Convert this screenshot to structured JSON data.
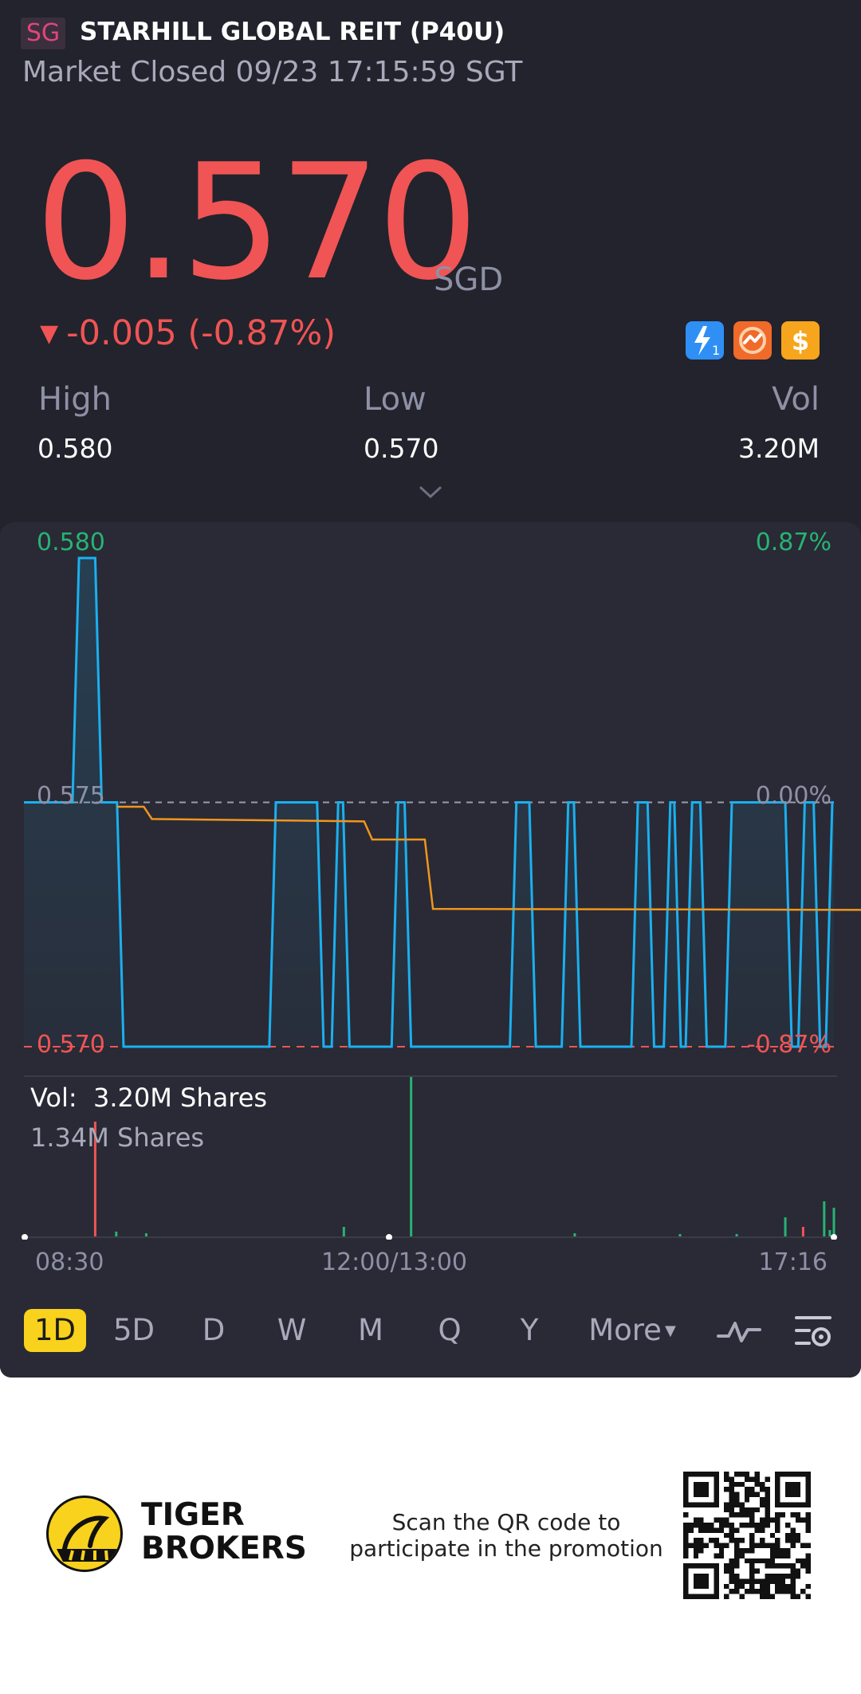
{
  "header": {
    "region_badge": "SG",
    "stock_name": "STARHILL GLOBAL REIT (P40U)",
    "status": "Market Closed 09/23 17:15:59 SGT"
  },
  "quote": {
    "price": "0.570",
    "currency": "SGD",
    "change": "-0.005 (-0.87%)",
    "direction_icon": "down-triangle",
    "badge_icons": [
      "lightning-level-1-icon",
      "swap-icon",
      "dollar-icon"
    ]
  },
  "stats": {
    "high_label": "High",
    "high_value": "0.580",
    "low_label": "Low",
    "low_value": "0.570",
    "vol_label": "Vol",
    "vol_value": "3.20M"
  },
  "chart": {
    "left_top": "0.580",
    "left_mid": "0.575",
    "left_bottom": "0.570",
    "right_top": "0.87%",
    "right_mid": "0.00%",
    "right_bottom": "-0.87%",
    "vol_label": "Vol:",
    "vol_value": "3.20M Shares",
    "vol_max": "1.34M Shares",
    "time_start": "08:30",
    "time_mid": "12:00/13:00",
    "time_end": "17:16"
  },
  "chart_data": {
    "type": "line",
    "x_range": [
      "08:30",
      "17:16"
    ],
    "ylim": [
      0.57,
      0.58
    ],
    "reference_price": 0.575,
    "series": [
      {
        "color": "#1ab0f0",
        "x": [
          0,
          0.06,
          0.068,
          0.088,
          0.096,
          0.115,
          0.123,
          0.303,
          0.311,
          0.362,
          0.37,
          0.38,
          0.388,
          0.394,
          0.402,
          0.454,
          0.462,
          0.47,
          0.478,
          0.6,
          0.608,
          0.624,
          0.632,
          0.664,
          0.672,
          0.679,
          0.687,
          0.75,
          0.758,
          0.77,
          0.778,
          0.79,
          0.798,
          0.803,
          0.811,
          0.817,
          0.825,
          0.835,
          0.843,
          0.866,
          0.874,
          0.94,
          0.948,
          0.956,
          0.964,
          0.975,
          0.983,
          0.99,
          0.998,
          1
        ],
        "values": [
          0.575,
          0.575,
          0.58,
          0.58,
          0.575,
          0.575,
          0.57,
          0.57,
          0.575,
          0.575,
          0.57,
          0.57,
          0.575,
          0.575,
          0.57,
          0.57,
          0.575,
          0.575,
          0.57,
          0.57,
          0.575,
          0.575,
          0.57,
          0.57,
          0.575,
          0.575,
          0.57,
          0.57,
          0.575,
          0.575,
          0.57,
          0.57,
          0.575,
          0.575,
          0.57,
          0.57,
          0.575,
          0.575,
          0.57,
          0.57,
          0.575,
          0.575,
          0.57,
          0.57,
          0.575,
          0.575,
          0.57,
          0.57,
          0.575,
          0.575
        ]
      },
      {
        "color": "#f0961e",
        "x": [
          0.115,
          0.148,
          0.158,
          0.42,
          0.43,
          0.495,
          0.505,
          1.04,
          1.06,
          1.07
        ],
        "values": [
          0.57491,
          0.57491,
          0.57466,
          0.57461,
          0.57424,
          0.57424,
          0.57282,
          0.5728,
          0.57262,
          0.57262
        ]
      }
    ],
    "volume": {
      "max_label": "1.34M",
      "bars": [
        {
          "x": 0.088,
          "frac": 0.72,
          "color": "red"
        },
        {
          "x": 0.114,
          "frac": 0.03,
          "color": "green"
        },
        {
          "x": 0.151,
          "frac": 0.02,
          "color": "green"
        },
        {
          "x": 0.395,
          "frac": 0.06,
          "color": "green"
        },
        {
          "x": 0.478,
          "frac": 1.0,
          "color": "green"
        },
        {
          "x": 0.68,
          "frac": 0.02,
          "color": "green"
        },
        {
          "x": 0.81,
          "frac": 0.015,
          "color": "green"
        },
        {
          "x": 0.88,
          "frac": 0.015,
          "color": "green"
        },
        {
          "x": 0.94,
          "frac": 0.12,
          "color": "green"
        },
        {
          "x": 0.962,
          "frac": 0.06,
          "color": "red"
        },
        {
          "x": 0.988,
          "frac": 0.22,
          "color": "green"
        },
        {
          "x": 0.995,
          "frac": 0.04,
          "color": "green"
        },
        {
          "x": 1.0,
          "frac": 0.18,
          "color": "green"
        }
      ]
    }
  },
  "tabs": [
    "1D",
    "5D",
    "D",
    "W",
    "M",
    "Q",
    "Y",
    "More"
  ],
  "active_tab": "1D",
  "toolbar_icons": [
    "indicator-icon",
    "chart-settings-icon"
  ],
  "promo": {
    "brand_line1": "TIGER",
    "brand_line2": "BROKERS",
    "text": "Scan the QR code to participate in the promotion"
  }
}
